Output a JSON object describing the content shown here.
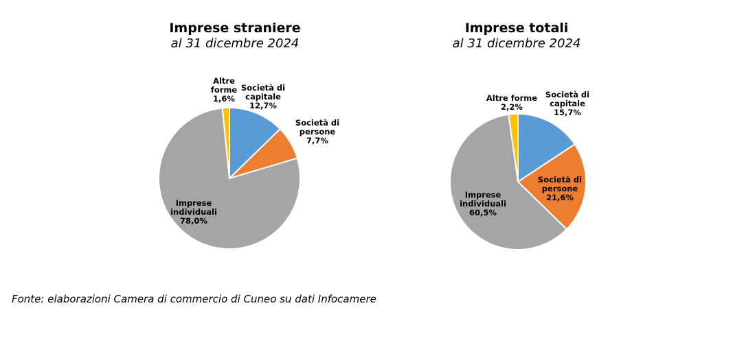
{
  "chart_data": [
    {
      "type": "pie",
      "title": "Imprese straniere",
      "subtitle": "al 31 dicembre 2024",
      "slices": [
        {
          "label": [
            "Società di",
            "capitale",
            "12,7%"
          ],
          "value": 12.7,
          "color": "#5b9bd5"
        },
        {
          "label": [
            "Società di",
            "persone",
            "7,7%"
          ],
          "value": 7.7,
          "color": "#ed7d31"
        },
        {
          "label": [
            "Imprese",
            "individuali",
            "78,0%"
          ],
          "value": 78.0,
          "color": "#a5a5a5"
        },
        {
          "label": [
            "Altre",
            "forme",
            "1,6%"
          ],
          "value": 1.6,
          "color": "#ffc000"
        }
      ]
    },
    {
      "type": "pie",
      "title": "Imprese totali",
      "subtitle": "al 31 dicembre 2024",
      "slices": [
        {
          "label": [
            "Società di",
            "capitale",
            "15,7%"
          ],
          "value": 15.7,
          "color": "#5b9bd5"
        },
        {
          "label": [
            "Società di",
            "persone",
            "21,6%"
          ],
          "value": 21.6,
          "color": "#ed7d31"
        },
        {
          "label": [
            "Imprese",
            "individuali",
            "60,5%"
          ],
          "value": 60.5,
          "color": "#a5a5a5"
        },
        {
          "label": [
            "Altre forme",
            "2,2%"
          ],
          "value": 2.2,
          "color": "#ffc000"
        }
      ]
    }
  ],
  "source": "Fonte: elaborazioni Camera di commercio di Cuneo su dati Infocamere"
}
